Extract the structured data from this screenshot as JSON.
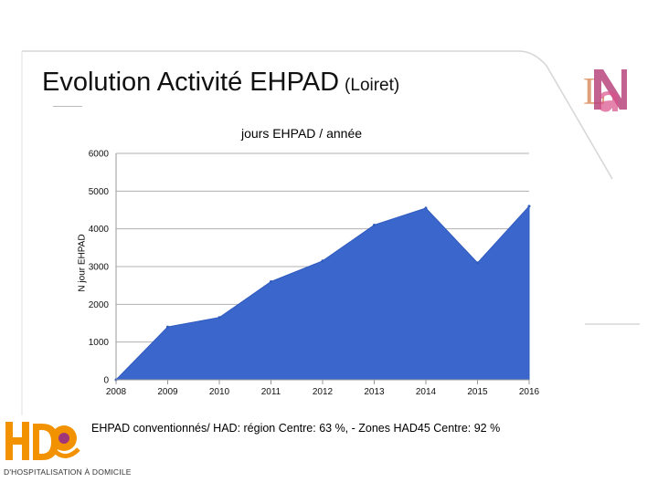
{
  "slide": {
    "title_main": "Evolution  Activité EHPAD",
    "title_sub": "(Loiret)",
    "footnote": "EHPAD conventionnés/ HAD: région Centre: 63 %,  -  Zones HAD45 Centre: 92 %"
  },
  "logos": {
    "top_right": "LNA",
    "bottom_left": "HAD",
    "bottom_left_text": "D'HOSPITALISATION À DOMICILE"
  },
  "colors": {
    "area_fill": "#3b66cc",
    "area_stroke": "#2f5bbf",
    "grid": "#b0b0b0",
    "accent_orange": "#f29200",
    "accent_purple": "#a0357a"
  },
  "chart_data": {
    "type": "area",
    "title": "jours EHPAD / année",
    "xlabel": "",
    "ylabel": "N jour  EHPAD",
    "x": [
      "2008",
      "2009",
      "2010",
      "2011",
      "2012",
      "2013",
      "2014",
      "2015",
      "2016"
    ],
    "series": [
      {
        "values": [
          0,
          1400,
          1650,
          2600,
          3150,
          4100,
          4550,
          3100,
          4600
        ]
      }
    ],
    "ylim": [
      0,
      6000
    ],
    "yticks": [
      0,
      1000,
      2000,
      3000,
      4000,
      5000,
      6000
    ],
    "grid": true,
    "legend": "none"
  }
}
